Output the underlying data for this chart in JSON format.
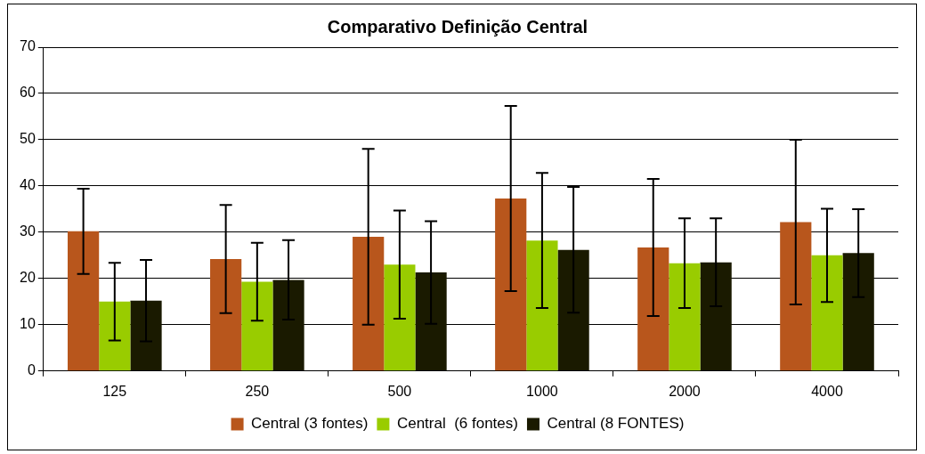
{
  "chart_data": {
    "type": "bar",
    "title": "Comparativo Definição Central",
    "categories": [
      "125",
      "250",
      "500",
      "1000",
      "2000",
      "4000"
    ],
    "series": [
      {
        "name": "Central (3 fontes)",
        "color": "#b8561c",
        "values": [
          30.2,
          24.2,
          29,
          37.3,
          26.7,
          32.2
        ],
        "errors": [
          9.2,
          11.7,
          19,
          20,
          14.8,
          17.8
        ]
      },
      {
        "name": "Central  (6 fontes)",
        "color": "#99cc00",
        "values": [
          15,
          19.3,
          23,
          28.2,
          23.3,
          25
        ],
        "errors": [
          8.4,
          8.4,
          11.7,
          14.6,
          9.7,
          10.1
        ]
      },
      {
        "name": "Central (8 FONTES)",
        "color": "#1a1a00",
        "values": [
          15.2,
          19.7,
          21.3,
          26.2,
          23.5,
          25.5
        ],
        "errors": [
          8.8,
          8.6,
          11.1,
          13.6,
          9.5,
          9.5
        ]
      }
    ],
    "ylim": [
      0,
      70
    ],
    "yticks": [
      0,
      10,
      20,
      30,
      40,
      50,
      60,
      70
    ],
    "grid": "y",
    "legend": "bottom"
  }
}
